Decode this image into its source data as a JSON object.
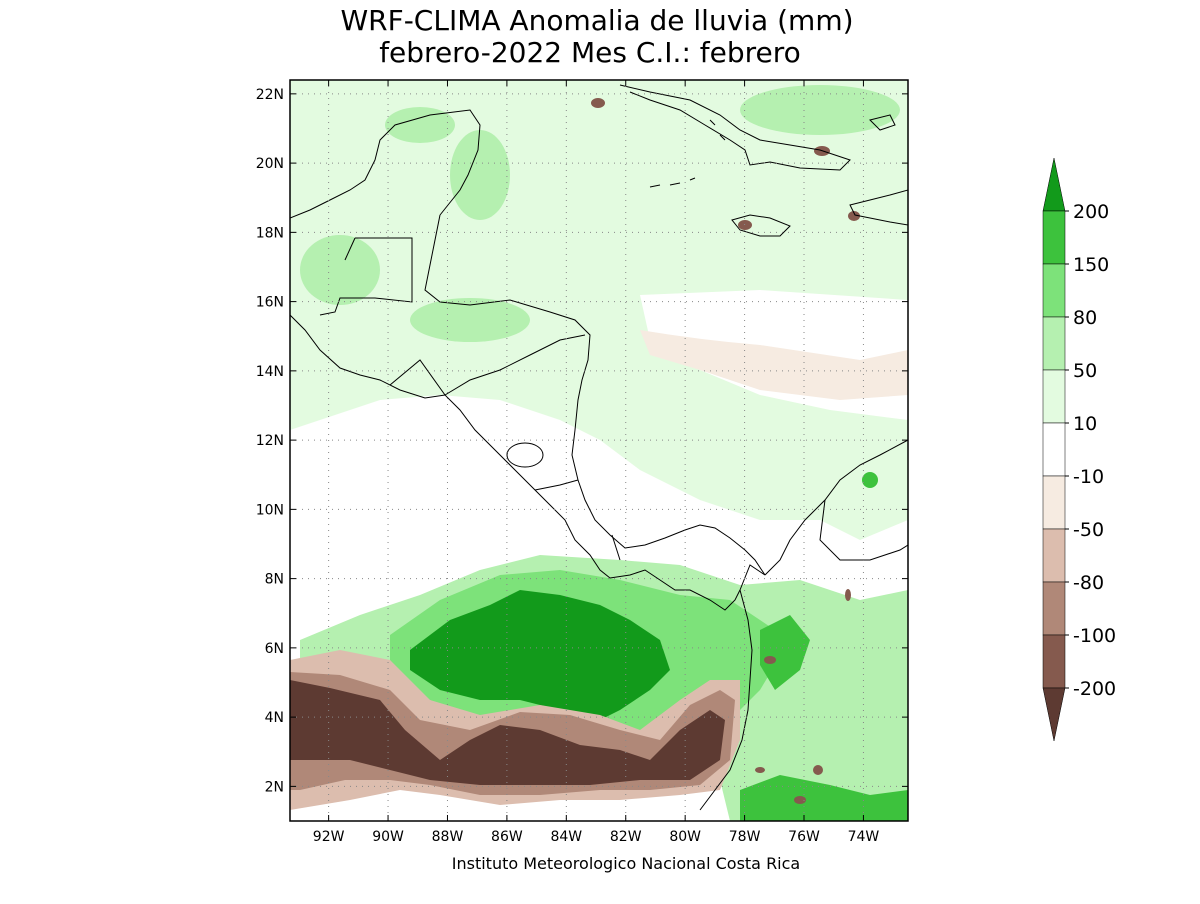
{
  "title": {
    "line1": "WRF-CLIMA Anomalia de lluvia (mm)",
    "line2": "febrero-2022 Mes C.I.: febrero"
  },
  "footer": "Instituto Meteorologico Nacional Costa Rica",
  "map": {
    "lon_range": [
      -93.3,
      -72.5
    ],
    "lat_range": [
      1.0,
      22.4
    ],
    "x_ticks": [
      {
        "value": -92,
        "label": "92W"
      },
      {
        "value": -90,
        "label": "90W"
      },
      {
        "value": -88,
        "label": "88W"
      },
      {
        "value": -86,
        "label": "86W"
      },
      {
        "value": -84,
        "label": "84W"
      },
      {
        "value": -82,
        "label": "82W"
      },
      {
        "value": -80,
        "label": "80W"
      },
      {
        "value": -78,
        "label": "78W"
      },
      {
        "value": -76,
        "label": "76W"
      },
      {
        "value": -74,
        "label": "74W"
      }
    ],
    "y_ticks": [
      {
        "value": 2,
        "label": "2N"
      },
      {
        "value": 4,
        "label": "4N"
      },
      {
        "value": 6,
        "label": "6N"
      },
      {
        "value": 8,
        "label": "8N"
      },
      {
        "value": 10,
        "label": "10N"
      },
      {
        "value": 12,
        "label": "12N"
      },
      {
        "value": 14,
        "label": "14N"
      },
      {
        "value": 16,
        "label": "16N"
      },
      {
        "value": 18,
        "label": "18N"
      },
      {
        "value": 20,
        "label": "20N"
      },
      {
        "value": 22,
        "label": "22N"
      }
    ],
    "grid": "dotted"
  },
  "colorbar": {
    "labels": [
      "200",
      "150",
      "80",
      "50",
      "10",
      "-10",
      "-50",
      "-80",
      "-100",
      "-200"
    ],
    "colors": [
      "#129a1b",
      "#3dc23d",
      "#7de27a",
      "#b5f0b0",
      "#e3fbe0",
      "#ffffff",
      "#f6ebe1",
      "#dcbdae",
      "#b08878",
      "#855a4e",
      "#5d3a32"
    ]
  },
  "colors": {
    "land_border": "#000000",
    "frame": "#000000",
    "text": "#000000"
  }
}
